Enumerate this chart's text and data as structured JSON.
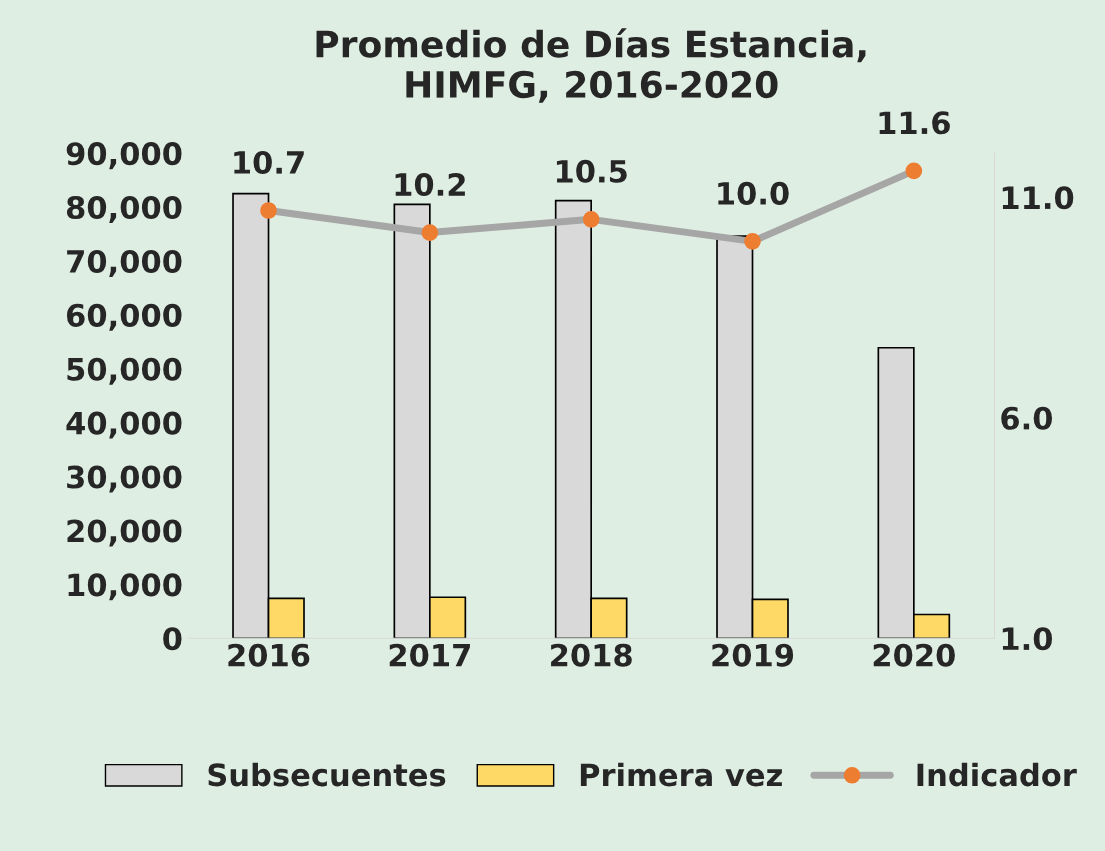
{
  "chart_data": {
    "type": "bar",
    "title": "Promedio de Días Estancia,\nHIMFG, 2016-2020",
    "categories": [
      "2016",
      "2017",
      "2018",
      "2019",
      "2020"
    ],
    "series": [
      {
        "name": "Subsecuentes",
        "color": "#d9d9d9",
        "values": [
          82500,
          80500,
          81200,
          74600,
          53900
        ]
      },
      {
        "name": "Primera vez",
        "color": "#ffd966",
        "values": [
          7400,
          7600,
          7400,
          7200,
          4400
        ]
      },
      {
        "name": "Indicador",
        "type": "line",
        "axis": "y2",
        "color": "#a6a6a6",
        "marker": "circle",
        "values": [
          10.7,
          10.2,
          10.5,
          10.0,
          11.6
        ],
        "value_labels": [
          "10.7",
          "10.2",
          "10.5",
          "10.0",
          "11.6"
        ]
      }
    ],
    "ylim": [
      0,
      90000
    ],
    "yticks": [
      {
        "value": 0,
        "label": "0"
      },
      {
        "value": 10000,
        "label": "10,000"
      },
      {
        "value": 20000,
        "label": "20,000"
      },
      {
        "value": 30000,
        "label": "30,000"
      },
      {
        "value": 40000,
        "label": "40,000"
      },
      {
        "value": 50000,
        "label": "50,000"
      },
      {
        "value": 60000,
        "label": "60,000"
      },
      {
        "value": 70000,
        "label": "70,000"
      },
      {
        "value": 80000,
        "label": "80,000"
      },
      {
        "value": 90000,
        "label": "90,000"
      }
    ],
    "y2lim": [
      1.0,
      12.0
    ],
    "y2ticks": [
      {
        "value": 1,
        "label": "1.0"
      },
      {
        "value": 6,
        "label": "6.0"
      },
      {
        "value": 11,
        "label": "11.0"
      }
    ],
    "grid": false,
    "legend": "bottom"
  }
}
